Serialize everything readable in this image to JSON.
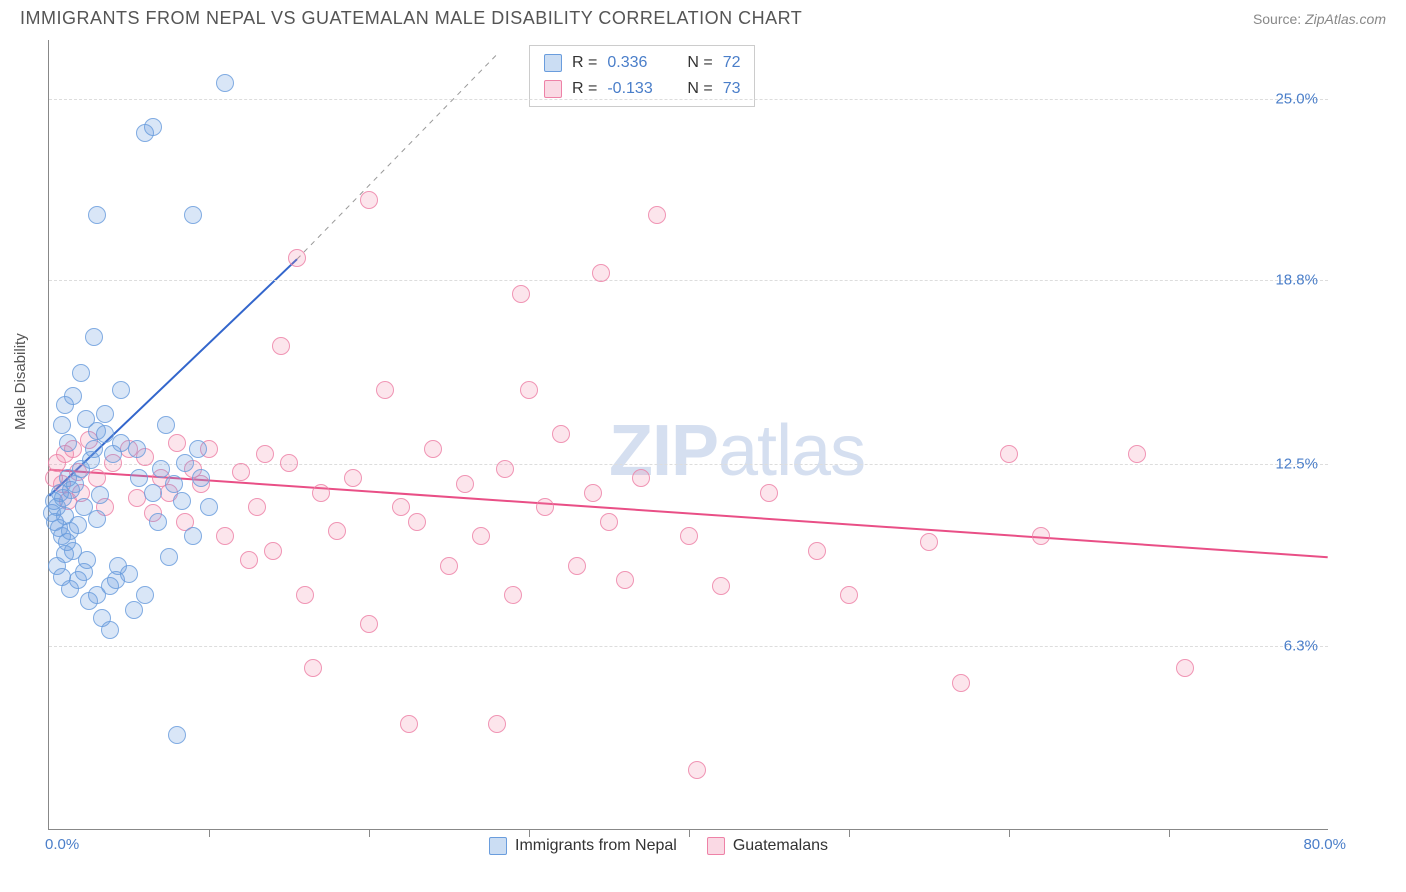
{
  "header": {
    "title": "IMMIGRANTS FROM NEPAL VS GUATEMALAN MALE DISABILITY CORRELATION CHART",
    "source_prefix": "Source:",
    "source_name": "ZipAtlas.com"
  },
  "chart": {
    "type": "scatter",
    "ylabel": "Male Disability",
    "background_color": "#ffffff",
    "grid_color": "#dddddd",
    "axis_color": "#888888",
    "ytick_label_color": "#4a7ec9",
    "xtick_label_color": "#4a7ec9",
    "label_color": "#555555",
    "marker_size": 18,
    "xlim": [
      0,
      80
    ],
    "ylim": [
      0,
      27
    ],
    "x_origin_label": "0.0%",
    "x_max_label": "80.0%",
    "yticks": [
      {
        "value": 6.3,
        "label": "6.3%"
      },
      {
        "value": 12.5,
        "label": "12.5%"
      },
      {
        "value": 18.8,
        "label": "18.8%"
      },
      {
        "value": 25.0,
        "label": "25.0%"
      }
    ],
    "xtick_positions": [
      10,
      20,
      30,
      40,
      50,
      60,
      70
    ],
    "watermark": {
      "text_bold": "ZIP",
      "text_light": "atlas",
      "color": "#d5dff0"
    },
    "stats_legend": {
      "series1": {
        "swatch_color": "blue",
        "r_label": "R =",
        "r_value": "0.336",
        "n_label": "N =",
        "n_value": "72"
      },
      "series2": {
        "swatch_color": "pink",
        "r_label": "R =",
        "r_value": "-0.133",
        "n_label": "N =",
        "n_value": "73"
      }
    },
    "bottom_legend": {
      "series1": {
        "swatch": "blue",
        "label": "Immigrants from Nepal"
      },
      "series2": {
        "swatch": "pink",
        "label": "Guatemalans"
      }
    },
    "series": {
      "nepal": {
        "color_fill": "rgba(106,157,221,0.3)",
        "color_stroke": "#6a9ddd",
        "trendline": {
          "x1": 0,
          "y1": 11.4,
          "x2": 15.5,
          "y2": 19.5,
          "dashed_extension": {
            "x2": 28,
            "y2": 26.5
          },
          "color": "#3366cc",
          "width": 2
        },
        "points": [
          [
            0.2,
            10.8
          ],
          [
            0.3,
            11.2
          ],
          [
            0.4,
            10.5
          ],
          [
            0.5,
            11.0
          ],
          [
            0.6,
            10.3
          ],
          [
            0.7,
            11.5
          ],
          [
            0.8,
            10.0
          ],
          [
            0.9,
            11.3
          ],
          [
            1.0,
            10.7
          ],
          [
            1.1,
            9.8
          ],
          [
            1.2,
            12.0
          ],
          [
            1.3,
            10.2
          ],
          [
            1.4,
            11.6
          ],
          [
            1.5,
            9.5
          ],
          [
            1.6,
            11.8
          ],
          [
            1.8,
            10.4
          ],
          [
            2.0,
            12.3
          ],
          [
            2.2,
            11.0
          ],
          [
            2.4,
            9.2
          ],
          [
            2.6,
            12.6
          ],
          [
            2.8,
            13.0
          ],
          [
            3.0,
            10.6
          ],
          [
            3.2,
            11.4
          ],
          [
            3.5,
            13.5
          ],
          [
            3.8,
            8.3
          ],
          [
            4.0,
            12.8
          ],
          [
            4.3,
            9.0
          ],
          [
            4.5,
            13.2
          ],
          [
            5.0,
            8.7
          ],
          [
            5.3,
            7.5
          ],
          [
            5.6,
            12.0
          ],
          [
            6.0,
            8.0
          ],
          [
            6.0,
            23.8
          ],
          [
            6.5,
            11.5
          ],
          [
            6.5,
            24.0
          ],
          [
            7.0,
            12.3
          ],
          [
            7.5,
            9.3
          ],
          [
            7.8,
            11.8
          ],
          [
            8.0,
            3.2
          ],
          [
            8.5,
            12.5
          ],
          [
            9.0,
            10.0
          ],
          [
            9.0,
            21.0
          ],
          [
            9.5,
            12.0
          ],
          [
            10.0,
            11.0
          ],
          [
            11.0,
            25.5
          ],
          [
            0.8,
            13.8
          ],
          [
            1.0,
            14.5
          ],
          [
            1.2,
            13.2
          ],
          [
            1.5,
            14.8
          ],
          [
            2.0,
            15.6
          ],
          [
            2.3,
            14.0
          ],
          [
            2.8,
            16.8
          ],
          [
            3.0,
            13.6
          ],
          [
            3.5,
            14.2
          ],
          [
            1.8,
            8.5
          ],
          [
            2.2,
            8.8
          ],
          [
            2.5,
            7.8
          ],
          [
            3.0,
            8.0
          ],
          [
            3.3,
            7.2
          ],
          [
            3.8,
            6.8
          ],
          [
            4.2,
            8.5
          ],
          [
            0.5,
            9.0
          ],
          [
            0.8,
            8.6
          ],
          [
            1.0,
            9.4
          ],
          [
            1.3,
            8.2
          ],
          [
            3.0,
            21.0
          ],
          [
            4.5,
            15.0
          ],
          [
            5.5,
            13.0
          ],
          [
            6.8,
            10.5
          ],
          [
            7.3,
            13.8
          ],
          [
            8.3,
            11.2
          ],
          [
            9.3,
            13.0
          ]
        ]
      },
      "guatemala": {
        "color_fill": "rgba(238,130,167,0.25)",
        "color_stroke": "#ee82a7",
        "trendline": {
          "x1": 0,
          "y1": 12.3,
          "x2": 80,
          "y2": 9.3,
          "color": "#e94f86",
          "width": 2
        },
        "points": [
          [
            0.3,
            12.0
          ],
          [
            0.5,
            12.5
          ],
          [
            0.8,
            11.8
          ],
          [
            1.0,
            12.8
          ],
          [
            1.2,
            11.2
          ],
          [
            1.5,
            13.0
          ],
          [
            1.8,
            12.2
          ],
          [
            2.0,
            11.5
          ],
          [
            2.5,
            13.3
          ],
          [
            3.0,
            12.0
          ],
          [
            3.5,
            11.0
          ],
          [
            4.0,
            12.5
          ],
          [
            5.0,
            13.0
          ],
          [
            5.5,
            11.3
          ],
          [
            6.0,
            12.7
          ],
          [
            6.5,
            10.8
          ],
          [
            7.0,
            12.0
          ],
          [
            7.5,
            11.5
          ],
          [
            8.0,
            13.2
          ],
          [
            8.5,
            10.5
          ],
          [
            9.0,
            12.3
          ],
          [
            9.5,
            11.8
          ],
          [
            10.0,
            13.0
          ],
          [
            11.0,
            10.0
          ],
          [
            12.0,
            12.2
          ],
          [
            13.0,
            11.0
          ],
          [
            14.0,
            9.5
          ],
          [
            15.0,
            12.5
          ],
          [
            15.5,
            19.5
          ],
          [
            16.0,
            8.0
          ],
          [
            17.0,
            11.5
          ],
          [
            18.0,
            10.2
          ],
          [
            19.0,
            12.0
          ],
          [
            20.0,
            7.0
          ],
          [
            20.0,
            21.5
          ],
          [
            21.0,
            15.0
          ],
          [
            22.0,
            11.0
          ],
          [
            22.5,
            3.6
          ],
          [
            23.0,
            10.5
          ],
          [
            24.0,
            13.0
          ],
          [
            25.0,
            9.0
          ],
          [
            26.0,
            11.8
          ],
          [
            27.0,
            10.0
          ],
          [
            28.0,
            3.6
          ],
          [
            28.5,
            12.3
          ],
          [
            29.0,
            8.0
          ],
          [
            29.5,
            18.3
          ],
          [
            30.0,
            15.0
          ],
          [
            31.0,
            11.0
          ],
          [
            32.0,
            13.5
          ],
          [
            33.0,
            9.0
          ],
          [
            34.0,
            11.5
          ],
          [
            34.5,
            19.0
          ],
          [
            35.0,
            10.5
          ],
          [
            36.0,
            8.5
          ],
          [
            37.0,
            12.0
          ],
          [
            38.0,
            21.0
          ],
          [
            40.0,
            10.0
          ],
          [
            40.5,
            2.0
          ],
          [
            42.0,
            8.3
          ],
          [
            45.0,
            11.5
          ],
          [
            48.0,
            9.5
          ],
          [
            50.0,
            8.0
          ],
          [
            55.0,
            9.8
          ],
          [
            57.0,
            5.0
          ],
          [
            60.0,
            12.8
          ],
          [
            62.0,
            10.0
          ],
          [
            68.0,
            12.8
          ],
          [
            71.0,
            5.5
          ],
          [
            16.5,
            5.5
          ],
          [
            12.5,
            9.2
          ],
          [
            13.5,
            12.8
          ],
          [
            14.5,
            16.5
          ]
        ]
      }
    }
  }
}
